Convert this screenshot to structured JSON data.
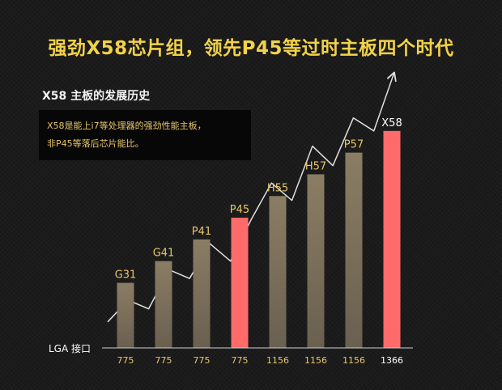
{
  "headline": "强劲X58芯片组，领先P45等过时主板四个时代",
  "section_title": "X58 主板的发展历史",
  "note": {
    "line1": "X58是能上i7等处理器的强劲性能主板，",
    "line2": "非P45等落后芯片能比。"
  },
  "colors": {
    "headline": "#f2d24a",
    "bar_normal": "#7d715d",
    "bar_highlight": "#ff6b6b",
    "label_gold": "#e9c66a",
    "trend_line": "#e0e0e0",
    "background": "#1b1b1b"
  },
  "chart_data": {
    "type": "bar",
    "x_axis_label": "LGA 接口",
    "categories": [
      "G31",
      "G41",
      "P41",
      "P45",
      "H55",
      "H57",
      "P57",
      "X58"
    ],
    "lga_socket": [
      "775",
      "775",
      "775",
      "775",
      "1156",
      "1156",
      "1156",
      "1366"
    ],
    "values": [
      3,
      4,
      5,
      6,
      7,
      8,
      9,
      10
    ],
    "ylim": [
      0,
      11
    ],
    "highlighted": [
      "P45",
      "X58"
    ],
    "grid": false,
    "legend": "none",
    "trend_line": {
      "shape": "rising zig-zag trend ending in an arrow",
      "points": [
        1.2,
        2.2,
        1.8,
        3.6,
        3.2,
        4.8,
        4.0,
        5.9,
        7.6,
        6.8,
        9.3,
        8.4,
        10.6,
        10.0,
        12.7
      ]
    }
  }
}
